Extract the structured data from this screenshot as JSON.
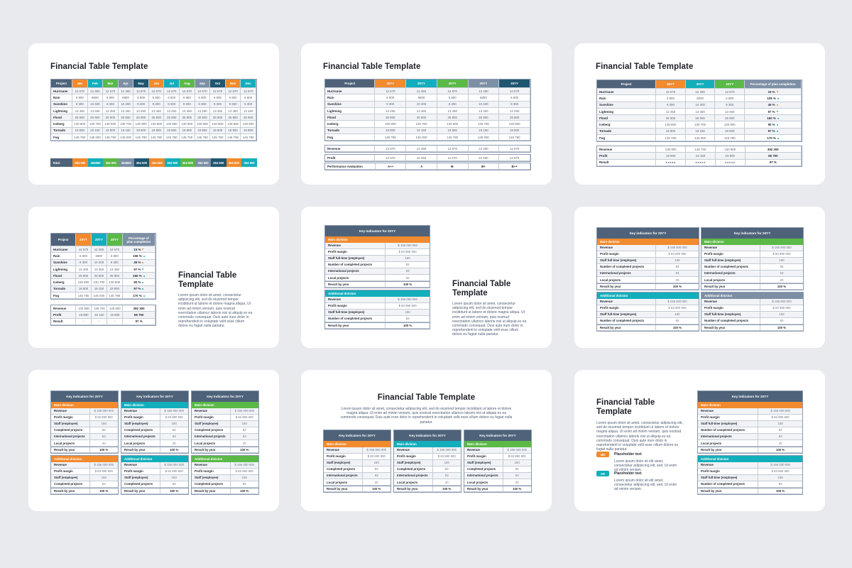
{
  "colors": {
    "background": "#e9eaee",
    "card": "#ffffff",
    "slate": "#4e6379",
    "orange": "#f28a2e",
    "teal": "#13aebc",
    "green": "#5ab947",
    "grey": "#7d8fa4",
    "navy": "#1f5670"
  },
  "common": {
    "title": "Financial Table Template",
    "title_line1": "Financial Table",
    "title_line2": "Template",
    "lorem": "Lorem ipsum dolor sit amet, consectetur adipiscing elit, sed do eiusmod tempor incididunt ut labore et dolore magna aliqua. Ut enim ad minim veniam, quis nostrud exercitation ullamco laboris nisi ut aliquip ex ea commodo consequat. Duis aute irure dolor in reprehenderit in voluptate velit esse cillum dolore eu fugiat nulla pariatur.",
    "lorem_short": "Lorem ipsum dolor sit elit amet, consectetur adipiscing elit, sed. Ut enim ad minim veniam."
  },
  "slide1": {
    "title": "Financial Table Template",
    "header": [
      "Project",
      "Jan",
      "Feb",
      "Mar",
      "Apr",
      "May",
      "Jun",
      "Jul",
      "Aug",
      "Sep",
      "Oct",
      "Nov",
      "Dec"
    ],
    "rows": [
      [
        "Hurricane",
        "12 670",
        "12 450",
        "12 670",
        "12 450",
        "12 670",
        "12 670",
        "12 670",
        "12 670",
        "12 670",
        "12 670",
        "12 670",
        "12 670"
      ],
      [
        "Rain",
        "6 800",
        "6800",
        "6 800",
        "6800",
        "6 800",
        "6 800",
        "6 800",
        "6 800",
        "6 800",
        "6 800",
        "6 800",
        "6 800"
      ],
      [
        "Sunshine",
        "9 300",
        "10 400",
        "9 300",
        "10 400",
        "9 300",
        "9 300",
        "9 300",
        "9 300",
        "9 300",
        "9 300",
        "9 300",
        "9 300"
      ],
      [
        "Lightning",
        "13 450",
        "13 450",
        "13 450",
        "13 450",
        "13 450",
        "13 450",
        "13 450",
        "13 450",
        "13 450",
        "13 450",
        "13 450",
        "13 450"
      ],
      [
        "Flood",
        "25 900",
        "26 900",
        "25 900",
        "26 900",
        "25 900",
        "25 900",
        "25 900",
        "25 900",
        "25 900",
        "25 900",
        "25 900",
        "25 900"
      ],
      [
        "Iceberg",
        "130 800",
        "130 700",
        "130 800",
        "130 700",
        "130 800",
        "130 800",
        "130 800",
        "130 800",
        "130 800",
        "130 800",
        "130 800",
        "130 800"
      ],
      [
        "Tornado",
        "19 800",
        "19 150",
        "19 800",
        "19 150",
        "19 800",
        "19 800",
        "19 800",
        "19 800",
        "19 800",
        "19 800",
        "19 800",
        "19 800"
      ],
      [
        "Fog",
        "145 780",
        "145 000",
        "145 780",
        "145 000",
        "145 780",
        "145 780",
        "145 780",
        "145 780",
        "145 780",
        "145 780",
        "145 780",
        "145 780"
      ]
    ],
    "total": [
      "Total:",
      "364 500",
      "364850",
      "364 500",
      "364850",
      "364 500",
      "364 500",
      "364 500",
      "364 500",
      "364 500",
      "364 500",
      "364 500",
      "364 500"
    ]
  },
  "slide2": {
    "title": "Financial Table Template",
    "header": [
      "Project",
      "20YY",
      "20YY",
      "20YY",
      "20YY",
      "20YY"
    ],
    "rows": [
      [
        "Hurricane",
        "12 670",
        "12 450",
        "12 670",
        "12 450",
        "12 670"
      ],
      [
        "Rain",
        "6 800",
        "6800",
        "6 800",
        "6800",
        "6 800"
      ],
      [
        "Sunshine",
        "9 300",
        "10 400",
        "9 300",
        "10 400",
        "9 300"
      ],
      [
        "Lightning",
        "13 450",
        "13 450",
        "13 450",
        "13 450",
        "13 450"
      ],
      [
        "Flood",
        "25 900",
        "26 900",
        "25 900",
        "26 900",
        "25 900"
      ],
      [
        "Iceberg",
        "130 800",
        "130 700",
        "130 800",
        "130 700",
        "130 800"
      ],
      [
        "Tornado",
        "19 800",
        "19 150",
        "19 800",
        "19 150",
        "19 800"
      ],
      [
        "Fog",
        "145 780",
        "145 000",
        "145 780",
        "145 000",
        "145 780"
      ]
    ],
    "revenue": [
      "Revenue",
      "12 670",
      "12 450",
      "12 670",
      "12 450",
      "12 670"
    ],
    "profit": [
      "Profit",
      "12 670",
      "12 450",
      "12 670",
      "12 450",
      "12 670"
    ],
    "performance": [
      "Performance evaluation",
      "A++",
      "A",
      "B-",
      "B+",
      "B++"
    ]
  },
  "slide3": {
    "title": "Financial Table Template",
    "header": [
      "Project",
      "20YY",
      "20YY",
      "20YY",
      "Percentage of plan completion"
    ],
    "header_split": [
      "Percentage of",
      "plan completion"
    ],
    "rows": [
      [
        "Hurricane",
        "12 670",
        "12 450",
        "12 670",
        "15 %",
        "down"
      ],
      [
        "Rain",
        "6 800",
        "6800",
        "6 800",
        "106 %",
        "up"
      ],
      [
        "Sunshine",
        "9 300",
        "10 400",
        "9 300",
        "45 %",
        "down"
      ],
      [
        "Lightning",
        "13 450",
        "13 450",
        "13 450",
        "97 %",
        "up"
      ],
      [
        "Flood",
        "25 900",
        "26 900",
        "25 900",
        "160 %",
        "up"
      ],
      [
        "Iceberg",
        "130 800",
        "130 700",
        "130 800",
        "90 %",
        "up"
      ],
      [
        "Tornado",
        "19 800",
        "19 150",
        "19 800",
        "97 %",
        "up"
      ],
      [
        "Fog",
        "145 780",
        "145 000",
        "145 780",
        "170 %",
        "up"
      ]
    ],
    "revenue": [
      "Revenue",
      "130 800",
      "130 700",
      "130 800",
      "392 300"
    ],
    "profit": [
      "Profit",
      "19 800",
      "19 150",
      "19 800",
      "58 750"
    ],
    "result": [
      "Result",
      "●●●●●",
      "●●●●●",
      "●●●●●",
      "97 %"
    ],
    "result_compact": [
      "Result",
      "⁘",
      "⁘",
      "⁘",
      "97 %"
    ]
  },
  "key_indicators": {
    "header": "Key indicators for 20YY",
    "main_division": "Main division",
    "additional_division": "Additional division",
    "main_rows_full": [
      [
        "Revenue",
        "$ 156 000 000"
      ],
      [
        "Profit margin",
        "$ 83 890 900"
      ],
      [
        "Staff full-time (employee)",
        "150"
      ],
      [
        "Number of completed projects",
        "83"
      ],
      [
        "International projects",
        "63"
      ],
      [
        "Local projects",
        "20"
      ]
    ],
    "main_rows_short": [
      [
        "Revenue",
        "$ 156 000 000"
      ],
      [
        "Profit margin",
        "$ 83 890 900"
      ],
      [
        "Staff (employee)",
        "150"
      ],
      [
        "Completed projects",
        "83"
      ],
      [
        "International projects",
        "63"
      ],
      [
        "Local projects",
        "20"
      ]
    ],
    "additional_rows_full": [
      [
        "Revenue",
        "$ 156 000 000"
      ],
      [
        "Profit margin",
        "$ 83 890 900"
      ],
      [
        "Staff full-time (employee)",
        "150"
      ],
      [
        "Number of completed projects",
        "83"
      ]
    ],
    "additional_rows_short": [
      [
        "Revenue",
        "$ 156 000 000"
      ],
      [
        "Profit margin",
        "$ 83 890 900"
      ],
      [
        "Staff (employee)",
        "150"
      ],
      [
        "Completed projects",
        "83"
      ]
    ],
    "result": [
      "Result by year",
      "100 %"
    ]
  },
  "slide9_legend": [
    {
      "badge": "MD",
      "title": "Placeholder text",
      "text": "Lorem ipsum dolor sit elit amet, consectetur adipiscing elit, sed. Ut enim ad minim veniam.",
      "color": "#f28a2e"
    },
    {
      "badge": "AD",
      "title": "Placeholder text",
      "text": "Lorem ipsum dolor sit elit amet, consectetur adipiscing elit, sed. Ut enim ad minim veniam.",
      "color": "#13aebc"
    }
  ]
}
